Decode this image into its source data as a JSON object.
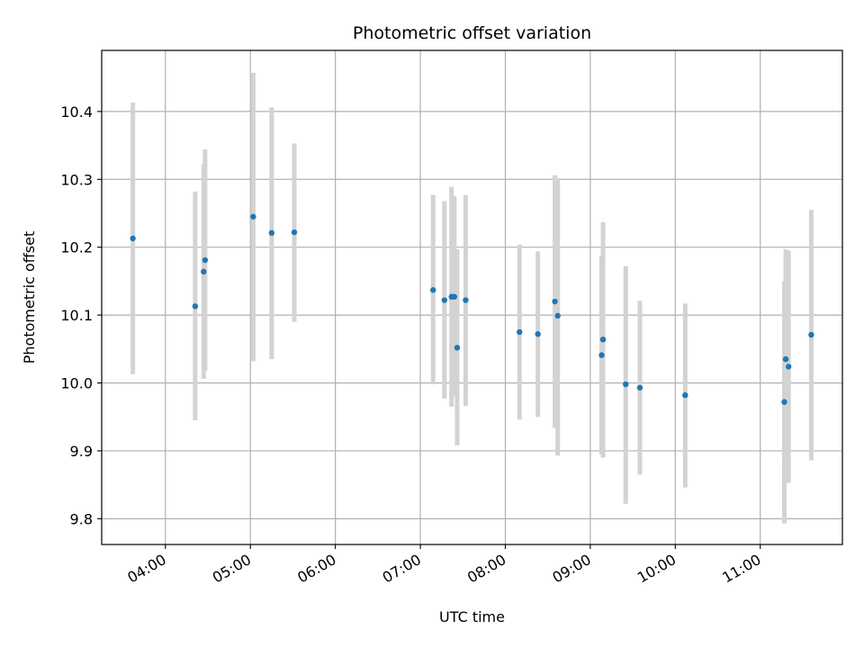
{
  "chart_data": {
    "type": "scatter",
    "title": "Photometric offset variation",
    "xlabel": "UTC time",
    "ylabel": "Photometric offset",
    "x_ticks": [
      "04:00",
      "05:00",
      "06:00",
      "07:00",
      "08:00",
      "09:00",
      "10:00",
      "11:00"
    ],
    "y_ticks": [
      "9.8",
      "9.9",
      "10.0",
      "10.1",
      "10.2",
      "10.3",
      "10.4"
    ],
    "xlim": [
      "03:15",
      "11:58"
    ],
    "ylim": [
      9.762,
      10.49
    ],
    "grid": true,
    "marker_color": "#1f77b4",
    "errorbar_color": "#d3d3d3",
    "points": [
      {
        "x": "03:37",
        "y": 10.213,
        "ylow": 10.013,
        "yhigh": 10.413
      },
      {
        "x": "04:21",
        "y": 10.113,
        "ylow": 9.945,
        "yhigh": 10.282
      },
      {
        "x": "04:27",
        "y": 10.164,
        "ylow": 10.006,
        "yhigh": 10.322
      },
      {
        "x": "04:28",
        "y": 10.181,
        "ylow": 10.018,
        "yhigh": 10.344
      },
      {
        "x": "05:02",
        "y": 10.245,
        "ylow": 10.032,
        "yhigh": 10.457
      },
      {
        "x": "05:15",
        "y": 10.221,
        "ylow": 10.035,
        "yhigh": 10.406
      },
      {
        "x": "05:31",
        "y": 10.222,
        "ylow": 10.09,
        "yhigh": 10.353
      },
      {
        "x": "07:09",
        "y": 10.137,
        "ylow": 9.998,
        "yhigh": 10.277
      },
      {
        "x": "07:17",
        "y": 10.122,
        "ylow": 9.977,
        "yhigh": 10.268
      },
      {
        "x": "07:22",
        "y": 10.127,
        "ylow": 9.965,
        "yhigh": 10.289
      },
      {
        "x": "07:24",
        "y": 10.127,
        "ylow": 9.98,
        "yhigh": 10.275
      },
      {
        "x": "07:26",
        "y": 10.052,
        "ylow": 9.908,
        "yhigh": 10.197
      },
      {
        "x": "07:32",
        "y": 10.122,
        "ylow": 9.966,
        "yhigh": 10.277
      },
      {
        "x": "08:10",
        "y": 10.075,
        "ylow": 9.946,
        "yhigh": 10.204
      },
      {
        "x": "08:23",
        "y": 10.072,
        "ylow": 9.95,
        "yhigh": 10.194
      },
      {
        "x": "08:35",
        "y": 10.12,
        "ylow": 9.934,
        "yhigh": 10.306
      },
      {
        "x": "08:37",
        "y": 10.099,
        "ylow": 9.893,
        "yhigh": 10.302
      },
      {
        "x": "09:08",
        "y": 10.041,
        "ylow": 9.895,
        "yhigh": 10.188
      },
      {
        "x": "09:09",
        "y": 10.064,
        "ylow": 9.89,
        "yhigh": 10.237
      },
      {
        "x": "09:25",
        "y": 9.998,
        "ylow": 9.822,
        "yhigh": 10.172
      },
      {
        "x": "09:35",
        "y": 9.993,
        "ylow": 9.865,
        "yhigh": 10.121
      },
      {
        "x": "10:07",
        "y": 9.982,
        "ylow": 9.846,
        "yhigh": 10.117
      },
      {
        "x": "11:17",
        "y": 9.972,
        "ylow": 9.793,
        "yhigh": 10.15
      },
      {
        "x": "11:18",
        "y": 10.035,
        "ylow": 9.874,
        "yhigh": 10.197
      },
      {
        "x": "11:20",
        "y": 10.024,
        "ylow": 9.853,
        "yhigh": 10.195
      },
      {
        "x": "11:36",
        "y": 10.071,
        "ylow": 9.886,
        "yhigh": 10.255
      }
    ]
  }
}
